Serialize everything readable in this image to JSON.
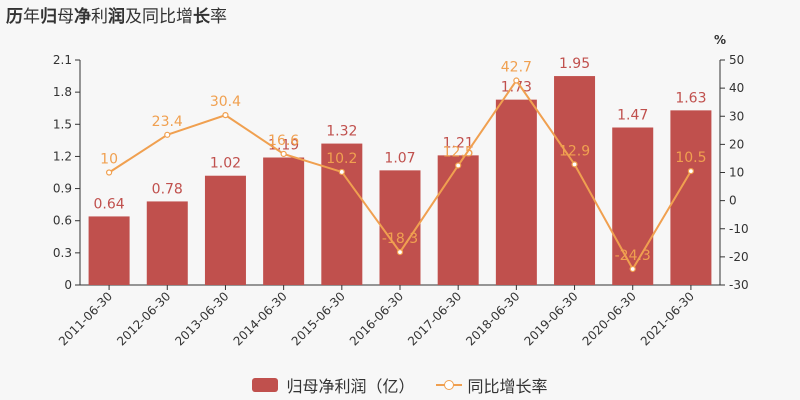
{
  "title_parts": [
    {
      "text": "历",
      "bold": true
    },
    {
      "text": "年",
      "bold": false
    },
    {
      "text": "归",
      "bold": true
    },
    {
      "text": "母",
      "bold": false
    },
    {
      "text": "净",
      "bold": true
    },
    {
      "text": "利",
      "bold": false
    },
    {
      "text": "润",
      "bold": true
    },
    {
      "text": "及同比增",
      "bold": false
    },
    {
      "text": "长",
      "bold": true
    },
    {
      "text": "率",
      "bold": false
    }
  ],
  "chart_data": {
    "type": "bar",
    "title": "历年归母净利润及同比增长率",
    "categories": [
      "2011-06-30",
      "2012-06-30",
      "2013-06-30",
      "2014-06-30",
      "2015-06-30",
      "2016-06-30",
      "2017-06-30",
      "2018-06-30",
      "2019-06-30",
      "2020-06-30",
      "2021-06-30"
    ],
    "series": [
      {
        "name": "归母净利润（亿）",
        "type": "bar",
        "axis": "left",
        "color": "#c0504d",
        "label_color": "#c0504d",
        "values": [
          0.64,
          0.78,
          1.02,
          1.19,
          1.32,
          1.07,
          1.21,
          1.73,
          1.95,
          1.47,
          1.63
        ]
      },
      {
        "name": "同比增长率",
        "type": "line",
        "axis": "right",
        "color": "#f0a050",
        "label_color": "#f0a050",
        "values": [
          10,
          23.4,
          30.4,
          16.6,
          10.2,
          -18.3,
          12.5,
          42.7,
          12.9,
          -24.3,
          10.5
        ]
      }
    ],
    "y_left": {
      "min": 0,
      "max": 2.1,
      "ticks": [
        "0",
        "0.3",
        "0.6",
        "0.9",
        "1.2",
        "1.5",
        "1.8",
        "2.1"
      ]
    },
    "y_right": {
      "min": -30,
      "max": 50,
      "unit": "%",
      "ticks": [
        "-30",
        "-20",
        "-10",
        "0",
        "10",
        "20",
        "30",
        "40",
        "50"
      ]
    },
    "grid": false,
    "legend_position": "bottom"
  }
}
